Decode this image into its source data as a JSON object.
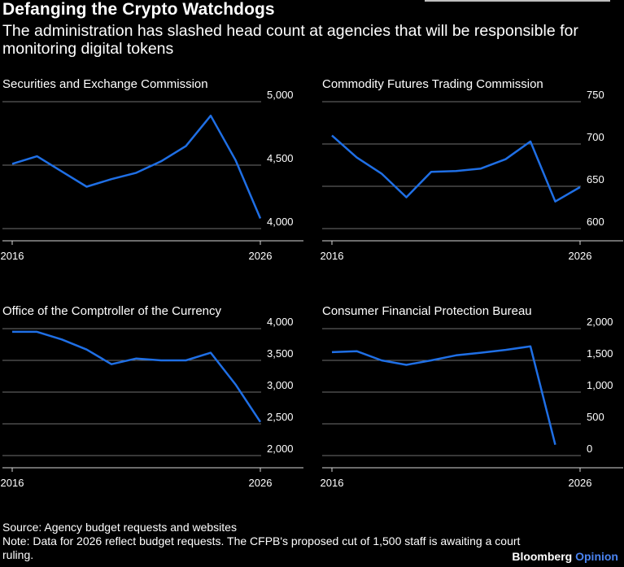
{
  "header": {
    "title": "Defanging the Crypto Watchdogs",
    "subtitle": "The administration has slashed head count at agencies that will be responsible for monitoring digital tokens"
  },
  "chart_data": [
    {
      "type": "line",
      "title": "Securities and Exchange Commission",
      "x": [
        2016,
        2017,
        2018,
        2019,
        2020,
        2021,
        2022,
        2023,
        2024,
        2025,
        2026
      ],
      "series": [
        {
          "values": [
            4510,
            4570,
            4450,
            4330,
            4390,
            4440,
            4530,
            4650,
            4890,
            4540,
            4080
          ]
        }
      ],
      "ylim": [
        4000,
        5000
      ],
      "yticks": [
        4000,
        4500,
        5000
      ],
      "ytick_labels": [
        "4,000",
        "4,500",
        "5,000"
      ],
      "xtick_labels": [
        "2016",
        "2026"
      ]
    },
    {
      "type": "line",
      "title": "Commodity Futures Trading Commission",
      "x": [
        2016,
        2017,
        2018,
        2019,
        2020,
        2021,
        2022,
        2023,
        2024,
        2025,
        2026
      ],
      "series": [
        {
          "values": [
            710,
            684,
            665,
            637,
            667,
            668,
            671,
            682,
            703,
            632,
            649
          ]
        }
      ],
      "ylim": [
        600,
        750
      ],
      "yticks": [
        600,
        650,
        700,
        750
      ],
      "ytick_labels": [
        "600",
        "650",
        "700",
        "750"
      ],
      "xtick_labels": [
        "2016",
        "2026"
      ]
    },
    {
      "type": "line",
      "title": "Office of the Comptroller of the Currency",
      "x": [
        2016,
        2017,
        2018,
        2019,
        2020,
        2021,
        2022,
        2023,
        2024,
        2025,
        2026
      ],
      "series": [
        {
          "values": [
            3950,
            3950,
            3830,
            3670,
            3440,
            3530,
            3500,
            3500,
            3620,
            3120,
            2530
          ]
        }
      ],
      "ylim": [
        2000,
        4000
      ],
      "yticks": [
        2000,
        2500,
        3000,
        3500,
        4000
      ],
      "ytick_labels": [
        "2,000",
        "2,500",
        "3,000",
        "3,500",
        "4,000"
      ],
      "xtick_labels": [
        "2016",
        "2026"
      ]
    },
    {
      "type": "line",
      "title": "Consumer Financial Protection Bureau",
      "x": [
        2016,
        2017,
        2018,
        2019,
        2020,
        2021,
        2022,
        2023,
        2024,
        2025
      ],
      "series": [
        {
          "values": [
            1630,
            1645,
            1500,
            1430,
            1500,
            1580,
            1620,
            1665,
            1720,
            170
          ]
        }
      ],
      "ylim": [
        0,
        2000
      ],
      "yticks": [
        0,
        500,
        1000,
        1500,
        2000
      ],
      "ytick_labels": [
        "0",
        "500",
        "1,000",
        "1,500",
        "2,000"
      ],
      "xtick_labels": [
        "2016",
        "2026"
      ]
    }
  ],
  "footer": {
    "source": "Source: Agency budget requests and websites",
    "note": "Note: Data for 2026 reflect budget requests. The CFPB's proposed cut of 1,500 staff is awaiting a court ruling."
  },
  "brand": {
    "name": "Bloomberg",
    "suffix": "Opinion"
  },
  "colors": {
    "line": "#1f6fe5",
    "grid": "#6f6f6f",
    "axis": "#d9d9d9"
  }
}
